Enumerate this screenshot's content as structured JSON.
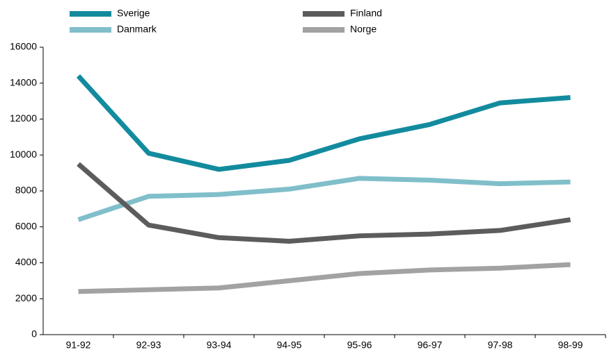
{
  "chart_data": {
    "type": "line",
    "categories": [
      "91-92",
      "92-93",
      "93-94",
      "94-95",
      "95-96",
      "96-97",
      "97-98",
      "98-99"
    ],
    "series": [
      {
        "name": "Sverige",
        "color": "#138b9e",
        "values": [
          14400,
          10100,
          9200,
          9700,
          10900,
          11700,
          12900,
          13200
        ]
      },
      {
        "name": "Danmark",
        "color": "#80bfca",
        "values": [
          6400,
          7700,
          7800,
          8100,
          8700,
          8600,
          8400,
          8500
        ]
      },
      {
        "name": "Finland",
        "color": "#5c5c5c",
        "values": [
          9500,
          6100,
          5400,
          5200,
          5500,
          5600,
          5800,
          6400
        ]
      },
      {
        "name": "Norge",
        "color": "#a2a2a2",
        "values": [
          2400,
          2500,
          2600,
          3000,
          3400,
          3600,
          3700,
          3900
        ]
      }
    ],
    "ylim": [
      0,
      16000
    ],
    "yticks": [
      0,
      2000,
      4000,
      6000,
      8000,
      10000,
      12000,
      14000,
      16000
    ],
    "grid": false
  }
}
